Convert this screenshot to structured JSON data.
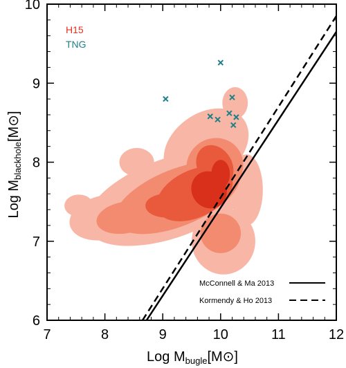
{
  "chart_data": {
    "type": "scatter",
    "xlim": [
      7,
      12
    ],
    "ylim": [
      6,
      10
    ],
    "x_ticks": [
      "7",
      "8",
      "9",
      "10",
      "11",
      "12"
    ],
    "y_ticks": [
      "6",
      "7",
      "8",
      "9",
      "10"
    ],
    "xlabel": {
      "prefix": "Log M",
      "subscript": "bugle",
      "suffix": "[M⊙]"
    },
    "ylabel": {
      "prefix": "Log M",
      "subscript": "blackhole",
      "suffix": "[M⊙]"
    },
    "legend_top": [
      {
        "name": "H15",
        "color": "#e8301f"
      },
      {
        "name": "TNG",
        "color": "#1e7f86"
      }
    ],
    "contour_levels": [
      {
        "color": "#f8b7a6",
        "blobs": [
          {
            "cx": 9.15,
            "cy": 7.55,
            "rx": 1.55,
            "ry": 0.5,
            "rot": 20
          },
          {
            "cx": 8.0,
            "cy": 7.3,
            "rx": 0.62,
            "ry": 0.28,
            "rot": 12
          },
          {
            "cx": 9.75,
            "cy": 8.2,
            "rx": 0.8,
            "ry": 0.42,
            "rot": 35
          },
          {
            "cx": 10.05,
            "cy": 7.0,
            "rx": 0.55,
            "ry": 0.42,
            "rot": 0
          },
          {
            "cx": 10.25,
            "cy": 8.75,
            "rx": 0.22,
            "ry": 0.2,
            "rot": 0
          },
          {
            "cx": 7.55,
            "cy": 7.45,
            "rx": 0.25,
            "ry": 0.14,
            "rot": 0
          },
          {
            "cx": 8.55,
            "cy": 8.0,
            "rx": 0.3,
            "ry": 0.18,
            "rot": 0
          },
          {
            "cx": 10.45,
            "cy": 7.65,
            "rx": 0.28,
            "ry": 0.45,
            "rot": 0
          }
        ]
      },
      {
        "color": "#f28b70",
        "blobs": [
          {
            "cx": 9.25,
            "cy": 7.55,
            "rx": 1.15,
            "ry": 0.36,
            "rot": 22
          },
          {
            "cx": 8.35,
            "cy": 7.3,
            "rx": 0.5,
            "ry": 0.2,
            "rot": 10
          },
          {
            "cx": 9.9,
            "cy": 7.95,
            "rx": 0.5,
            "ry": 0.35,
            "rot": 40
          },
          {
            "cx": 10.0,
            "cy": 7.1,
            "rx": 0.35,
            "ry": 0.25,
            "rot": 0
          }
        ]
      },
      {
        "color": "#e95a3d",
        "blobs": [
          {
            "cx": 9.55,
            "cy": 7.6,
            "rx": 0.7,
            "ry": 0.3,
            "rot": 25
          },
          {
            "cx": 9.9,
            "cy": 7.95,
            "rx": 0.3,
            "ry": 0.28,
            "rot": 30
          },
          {
            "cx": 9.05,
            "cy": 7.45,
            "rx": 0.35,
            "ry": 0.15,
            "rot": 0
          }
        ]
      },
      {
        "color": "#d9301c",
        "blobs": [
          {
            "cx": 9.8,
            "cy": 7.65,
            "rx": 0.3,
            "ry": 0.24,
            "rot": 30
          },
          {
            "cx": 10.0,
            "cy": 7.85,
            "rx": 0.16,
            "ry": 0.18,
            "rot": 0
          }
        ]
      }
    ],
    "tng_points": [
      {
        "x": 9.05,
        "y": 8.8
      },
      {
        "x": 10.0,
        "y": 9.26
      },
      {
        "x": 10.2,
        "y": 8.82
      },
      {
        "x": 10.15,
        "y": 8.62
      },
      {
        "x": 9.82,
        "y": 8.58
      },
      {
        "x": 9.95,
        "y": 8.54
      },
      {
        "x": 10.27,
        "y": 8.57
      },
      {
        "x": 10.22,
        "y": 8.47
      }
    ],
    "relations": [
      {
        "name": "McConnell & Ma 2013",
        "style": "solid",
        "x": [
          8.72,
          12.0
        ],
        "y": [
          6.0,
          9.65
        ]
      },
      {
        "name": "Kormendy & Ho 2013",
        "style": "dashed",
        "x": [
          8.65,
          12.0
        ],
        "y": [
          6.0,
          9.85
        ]
      }
    ],
    "colors": {
      "tng": "#1e7f86",
      "h15": "#e8301f",
      "axis": "#000000"
    }
  }
}
